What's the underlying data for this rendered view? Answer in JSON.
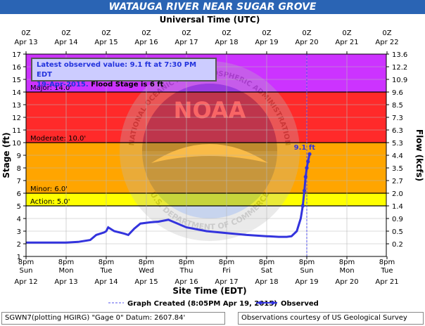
{
  "chart_data": {
    "type": "line",
    "title": "WATAUGA RIVER NEAR SUGAR GROVE",
    "top_axis_label": "Universal Time (UTC)",
    "top_ticks": [
      {
        "l1": "0Z",
        "l2": "Apr 13"
      },
      {
        "l1": "0Z",
        "l2": "Apr 14"
      },
      {
        "l1": "0Z",
        "l2": "Apr 15"
      },
      {
        "l1": "0Z",
        "l2": "Apr 16"
      },
      {
        "l1": "0Z",
        "l2": "Apr 17"
      },
      {
        "l1": "0Z",
        "l2": "Apr 18"
      },
      {
        "l1": "0Z",
        "l2": "Apr 19"
      },
      {
        "l1": "0Z",
        "l2": "Apr 20"
      },
      {
        "l1": "0Z",
        "l2": "Apr 21"
      },
      {
        "l1": "0Z",
        "l2": "Apr 22"
      }
    ],
    "bottom_axis_label": "Site Time (EDT)",
    "bottom_ticks": [
      {
        "l1": "8pm",
        "l2": "Sun",
        "l3": "Apr 12"
      },
      {
        "l1": "8pm",
        "l2": "Mon",
        "l3": "Apr 13"
      },
      {
        "l1": "8pm",
        "l2": "Tue",
        "l3": "Apr 14"
      },
      {
        "l1": "8pm",
        "l2": "Wed",
        "l3": "Apr 15"
      },
      {
        "l1": "8pm",
        "l2": "Thu",
        "l3": "Apr 16"
      },
      {
        "l1": "8pm",
        "l2": "Fri",
        "l3": "Apr 17"
      },
      {
        "l1": "8pm",
        "l2": "Sat",
        "l3": "Apr 18"
      },
      {
        "l1": "8pm",
        "l2": "Sun",
        "l3": "Apr 19"
      },
      {
        "l1": "8pm",
        "l2": "Mon",
        "l3": "Apr 20"
      },
      {
        "l1": "8pm",
        "l2": "Tue",
        "l3": "Apr 21"
      }
    ],
    "y_left_label": "Stage (ft)",
    "y_left_range": [
      1,
      17
    ],
    "y_left_ticks": [
      1,
      2,
      3,
      4,
      5,
      6,
      7,
      8,
      9,
      10,
      11,
      12,
      13,
      14,
      15,
      16,
      17
    ],
    "y_right_label": "Flow (kcfs)",
    "y_right_ticks": [
      {
        "stage": 2.0,
        "label": "0.2"
      },
      {
        "stage": 3.0,
        "label": "0.5"
      },
      {
        "stage": 4.0,
        "label": "0.9"
      },
      {
        "stage": 5.0,
        "label": "1.4"
      },
      {
        "stage": 6.0,
        "label": "2.0"
      },
      {
        "stage": 7.0,
        "label": "2.7"
      },
      {
        "stage": 8.0,
        "label": "3.5"
      },
      {
        "stage": 9.0,
        "label": "4.4"
      },
      {
        "stage": 10.0,
        "label": "5.3"
      },
      {
        "stage": 11.0,
        "label": "6.3"
      },
      {
        "stage": 12.0,
        "label": "7.3"
      },
      {
        "stage": 13.0,
        "label": "8.5"
      },
      {
        "stage": 14.0,
        "label": "9.6"
      },
      {
        "stage": 15.0,
        "label": "10.9"
      },
      {
        "stage": 16.0,
        "label": "12.2"
      },
      {
        "stage": 17.0,
        "label": "13.6"
      }
    ],
    "grid": true,
    "flood_categories": [
      {
        "name": "Action",
        "label": "Action: 5.0'",
        "from": 5.0,
        "to": 6.0,
        "color": "#ffff00"
      },
      {
        "name": "Minor",
        "label": "Minor: 6.0'",
        "from": 6.0,
        "to": 10.0,
        "color": "#ffa500"
      },
      {
        "name": "Moderate",
        "label": "Moderate: 10.0'",
        "from": 10.0,
        "to": 14.0,
        "color": "#ff2a2a"
      },
      {
        "name": "Major",
        "label": "Major: 14.0'",
        "from": 14.0,
        "to": 17.0,
        "color": "#cc33ff"
      }
    ],
    "series": [
      {
        "name": "Observed",
        "color": "#3333dd",
        "x_unit": "days after 8pm EDT Apr 12",
        "x": [
          0,
          0.5,
          1.0,
          1.3,
          1.6,
          1.75,
          1.95,
          2.0,
          2.05,
          2.2,
          2.45,
          2.55,
          2.7,
          2.85,
          3.1,
          3.3,
          3.55,
          3.7,
          4.0,
          4.5,
          5.0,
          5.5,
          6.0,
          6.3,
          6.5,
          6.62,
          6.75,
          6.85,
          6.9,
          6.94,
          6.97,
          7.0,
          7.03,
          7.07
        ],
        "y": [
          2.1,
          2.1,
          2.1,
          2.15,
          2.3,
          2.7,
          2.9,
          3.0,
          3.3,
          3.0,
          2.8,
          2.7,
          3.2,
          3.6,
          3.7,
          3.75,
          3.9,
          3.7,
          3.3,
          3.0,
          2.85,
          2.7,
          2.6,
          2.55,
          2.55,
          2.6,
          3.0,
          4.0,
          5.0,
          6.2,
          7.3,
          8.0,
          8.5,
          9.1
        ]
      }
    ],
    "marker_label": "9.1 ft",
    "forecast_line_label": "Graph Created (8:05PM Apr 19, 2015)",
    "forecast_line_x": 7.0,
    "latest_line1": "Latest observed value: 9.1  ft at 7:30 PM EDT",
    "latest_date": "19-Apr-2015.",
    "latest_flood": "Flood Stage is 6 ft",
    "watermark": "NOAA",
    "watermark_ring_top": "NATIONAL OCEANIC AND ATMOSPHERIC ADMINISTRATION",
    "watermark_ring_bottom": "U.S. DEPARTMENT OF COMMERCE"
  },
  "footer": {
    "left": "SGWN7(plotting HGIRG) \"Gage 0\" Datum: 2607.84'",
    "right": "Observations courtesy of US Geological Survey"
  }
}
